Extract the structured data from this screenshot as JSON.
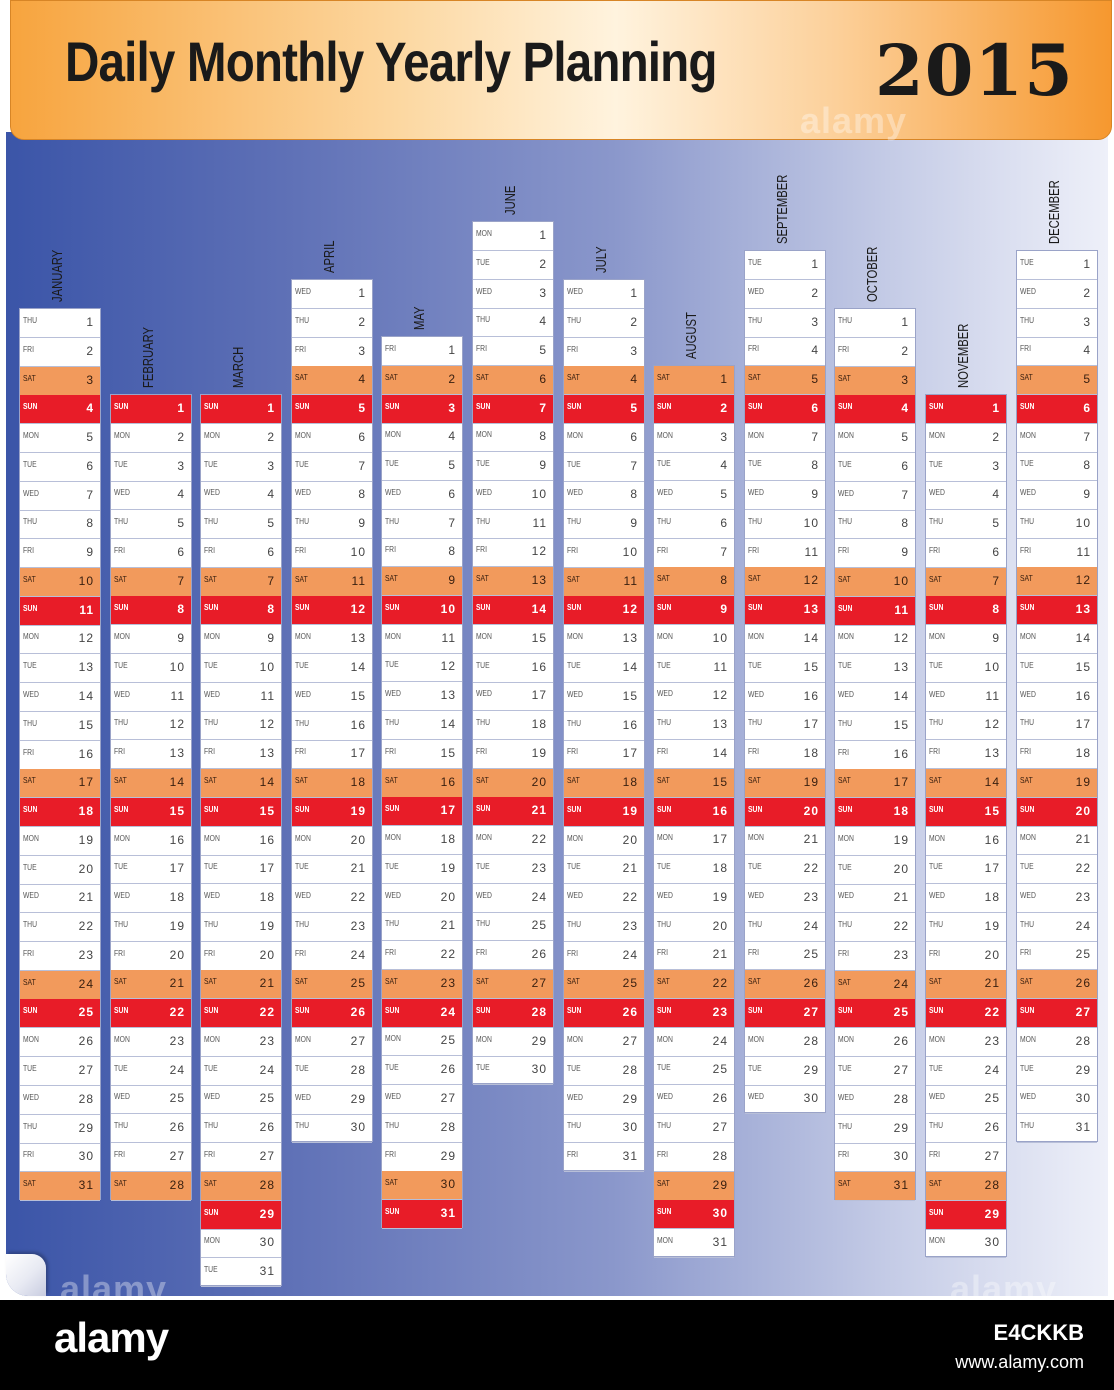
{
  "header": {
    "title": "Daily Monthly Yearly Planning",
    "year": "2015"
  },
  "watermark": "alamy",
  "footer": {
    "logo": "alamy",
    "image_id": "E4CKKB",
    "site": "www.alamy.com"
  },
  "months": [
    {
      "name": "JANUARY",
      "first_weekday": "THU",
      "days": 31
    },
    {
      "name": "FEBRUARY",
      "first_weekday": "SUN",
      "days": 28
    },
    {
      "name": "MARCH",
      "first_weekday": "SUN",
      "days": 31
    },
    {
      "name": "APRIL",
      "first_weekday": "WED",
      "days": 30
    },
    {
      "name": "MAY",
      "first_weekday": "FRI",
      "days": 31
    },
    {
      "name": "JUNE",
      "first_weekday": "MON",
      "days": 30
    },
    {
      "name": "JULY",
      "first_weekday": "WED",
      "days": 31
    },
    {
      "name": "AUGUST",
      "first_weekday": "SAT",
      "days": 31
    },
    {
      "name": "SEPTEMBER",
      "first_weekday": "TUE",
      "days": 30
    },
    {
      "name": "OCTOBER",
      "first_weekday": "THU",
      "days": 31
    },
    {
      "name": "NOVEMBER",
      "first_weekday": "SUN",
      "days": 30
    },
    {
      "name": "DECEMBER",
      "first_weekday": "TUE",
      "days": 31
    }
  ],
  "weekdays": [
    "MON",
    "TUE",
    "WED",
    "THU",
    "FRI",
    "SAT",
    "SUN"
  ],
  "colors": {
    "saturday": "#f29a5c",
    "sunday": "#e81c28",
    "header": "#f7a43e",
    "background": "#3b55a8"
  }
}
